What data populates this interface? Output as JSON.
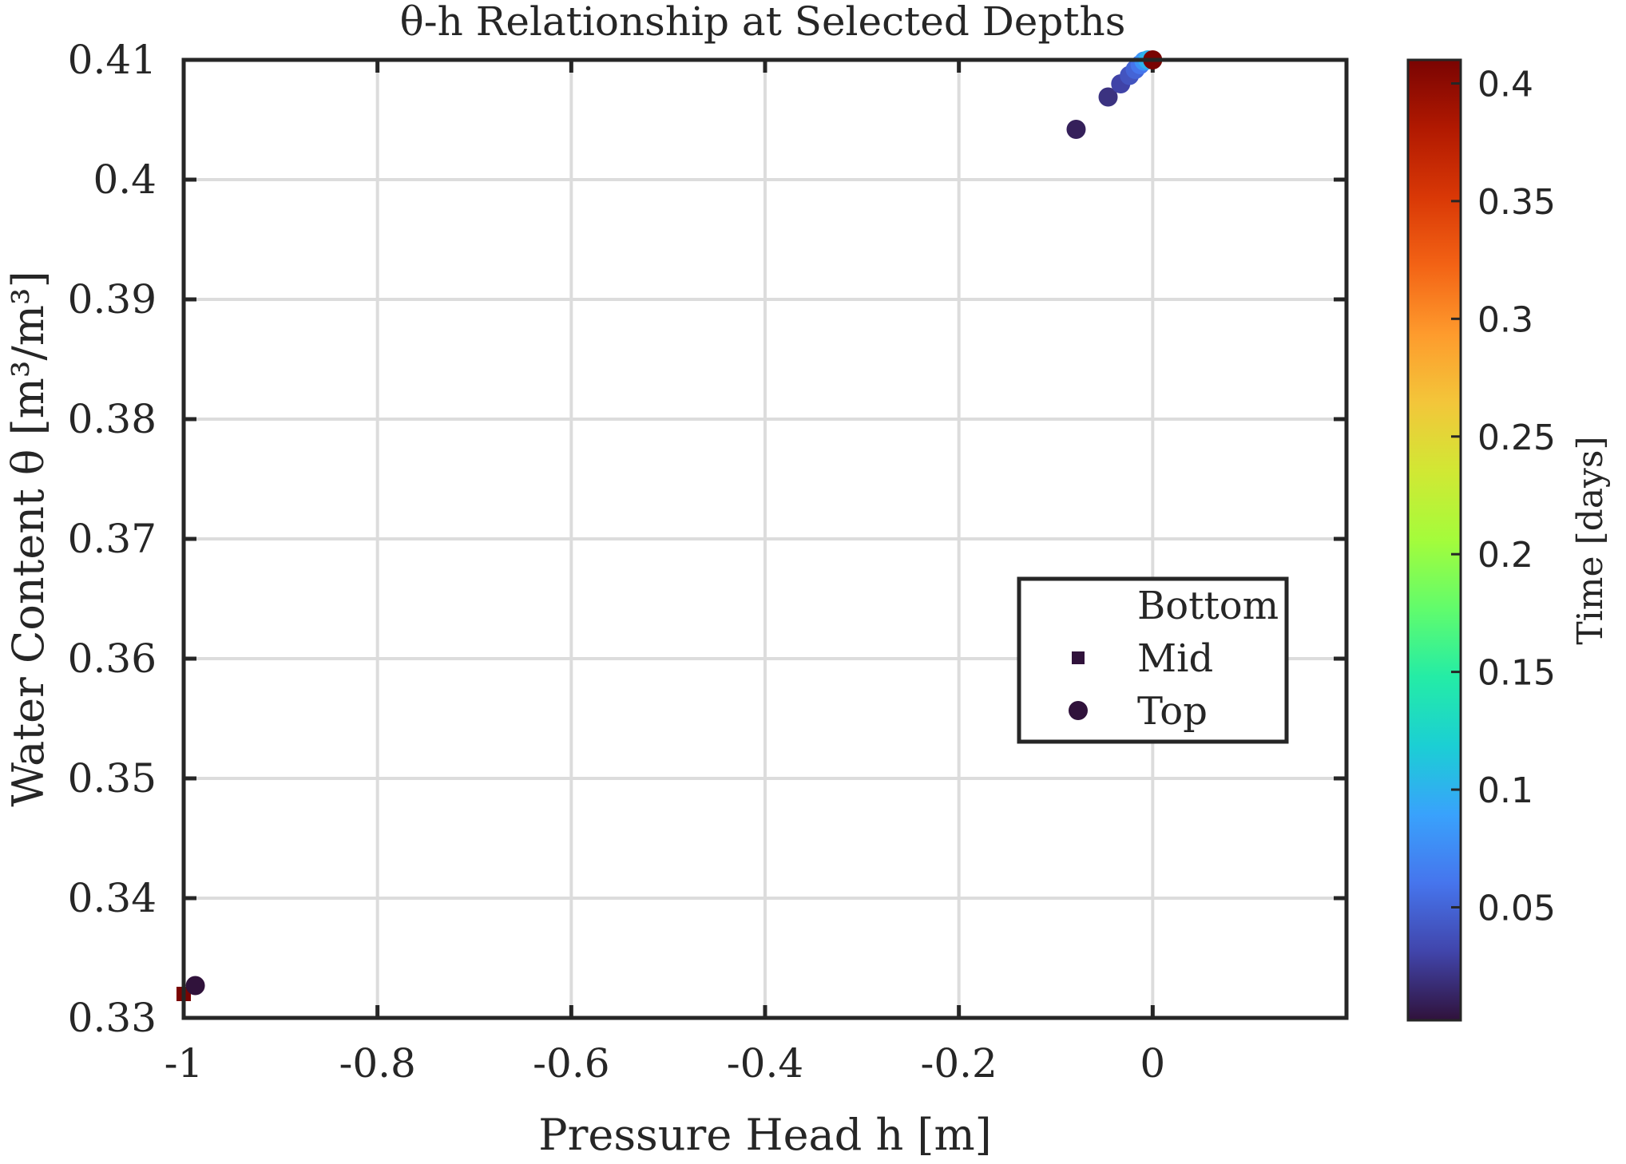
{
  "chart_data": {
    "type": "scatter",
    "title": "θ-h Relationship at Selected Depths",
    "xlabel": "Pressure Head h [m]",
    "ylabel": "Water Content θ [m³/m³]",
    "xlim": [
      -1,
      0.2
    ],
    "ylim": [
      0.33,
      0.41
    ],
    "x_ticks": [
      -1,
      -0.8,
      -0.6,
      -0.4,
      -0.2,
      0
    ],
    "x_tick_labels": [
      "-1",
      "-0.8",
      "-0.6",
      "-0.4",
      "-0.2",
      "0"
    ],
    "y_ticks": [
      0.33,
      0.34,
      0.35,
      0.36,
      0.37,
      0.38,
      0.39,
      0.4,
      0.41
    ],
    "y_tick_labels": [
      "0.33",
      "0.34",
      "0.35",
      "0.36",
      "0.37",
      "0.38",
      "0.39",
      "0.4",
      "0.41"
    ],
    "grid": true,
    "legend_position": "center-right",
    "colorbar": {
      "label": "Time [days]",
      "range": [
        0.002,
        0.41
      ],
      "ticks": [
        0.05,
        0.1,
        0.15,
        0.2,
        0.25,
        0.3,
        0.35,
        0.4
      ],
      "tick_labels": [
        "0.05",
        "0.1",
        "0.15",
        "0.2",
        "0.25",
        "0.3",
        "0.35",
        "0.4"
      ],
      "colormap": [
        "#30123b",
        "#4145ab",
        "#4675ed",
        "#39a2fc",
        "#1bcfd4",
        "#24eca6",
        "#61fc6c",
        "#a4fc3b",
        "#d1e834",
        "#f3c63a",
        "#fe9b2d",
        "#f36315",
        "#d93806",
        "#b11901",
        "#7a0402"
      ]
    },
    "series": [
      {
        "name": "Bottom",
        "marker": "none",
        "points": []
      },
      {
        "name": "Mid",
        "marker": "square",
        "legend_color": "#30123b",
        "points": [
          {
            "x": -1.0,
            "y": 0.332,
            "t": 0.41
          }
        ]
      },
      {
        "name": "Top",
        "marker": "circle",
        "legend_color": "#30123b",
        "points": [
          {
            "x": -0.988,
            "y": 0.3327,
            "t": 0.002
          },
          {
            "x": -0.079,
            "y": 0.4042,
            "t": 0.01
          },
          {
            "x": -0.046,
            "y": 0.4069,
            "t": 0.02
          },
          {
            "x": -0.033,
            "y": 0.408,
            "t": 0.03
          },
          {
            "x": -0.024,
            "y": 0.4087,
            "t": 0.04
          },
          {
            "x": -0.018,
            "y": 0.4092,
            "t": 0.05
          },
          {
            "x": -0.013,
            "y": 0.4096,
            "t": 0.06
          },
          {
            "x": -0.009,
            "y": 0.4099,
            "t": 0.08
          },
          {
            "x": -0.005,
            "y": 0.41,
            "t": 0.1
          },
          {
            "x": 0.0,
            "y": 0.41,
            "t": 0.41
          }
        ]
      }
    ]
  }
}
